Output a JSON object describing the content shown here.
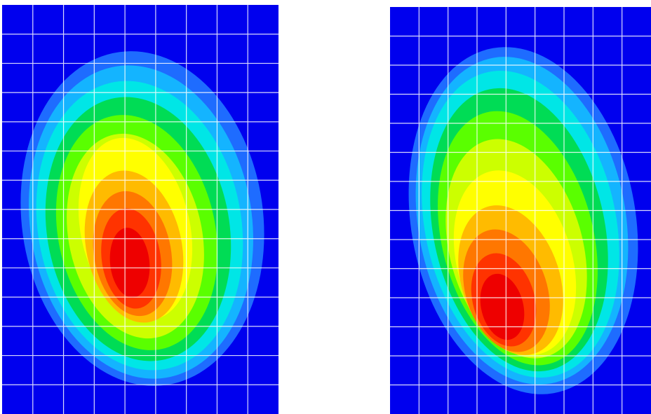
{
  "figure": {
    "panels": [
      {
        "id": "left",
        "name": "pressure-map-left"
      },
      {
        "id": "right",
        "name": "pressure-map-right"
      }
    ],
    "colors": {
      "background": "#0000ee",
      "grid": "#ffffff",
      "levels": [
        "#0000ee",
        "#1e6cff",
        "#14b4ff",
        "#00e6e6",
        "#00dc55",
        "#5aff00",
        "#ccff00",
        "#ffff00",
        "#ffbb00",
        "#ff7700",
        "#ff3300",
        "#ee0000"
      ]
    },
    "grid": {
      "shown": true
    }
  }
}
